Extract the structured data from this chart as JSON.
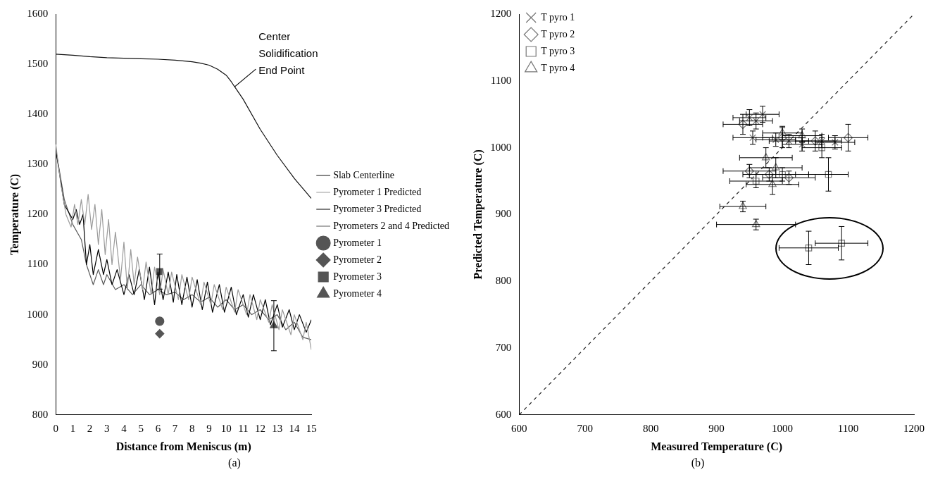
{
  "chart_data": [
    {
      "type": "line",
      "xlabel": "Distance from Meniscus (m)",
      "ylabel": "Temperature (C)",
      "xlim": [
        0,
        15
      ],
      "ylim": [
        800,
        1600
      ],
      "xticks": [
        0,
        1,
        2,
        3,
        4,
        5,
        6,
        7,
        8,
        9,
        10,
        11,
        12,
        13,
        14,
        15
      ],
      "yticks": [
        800,
        900,
        1000,
        1100,
        1200,
        1300,
        1400,
        1500,
        1600
      ],
      "grid": false,
      "legend": "right",
      "annotations": [
        {
          "text": "Center Solidification End Point",
          "x": 10.5,
          "y": 1455
        },
        "(a)"
      ],
      "series": [
        {
          "name": "Slab Centerline",
          "type": "line",
          "color": "#111111",
          "x": [
            0,
            1,
            2,
            3,
            4,
            5,
            6,
            7,
            8,
            8.5,
            9,
            9.5,
            10,
            10.3,
            10.5,
            11,
            12,
            13,
            14,
            15
          ],
          "values": [
            1520,
            1518,
            1515,
            1513,
            1512,
            1511,
            1510,
            1508,
            1505,
            1502,
            1498,
            1490,
            1478,
            1465,
            1455,
            1430,
            1370,
            1318,
            1272,
            1232
          ]
        },
        {
          "name": "Pyrometer 1 Predicted",
          "type": "line",
          "color": "#9a9a9a",
          "x": [
            0,
            0.3,
            0.6,
            0.9,
            1.1,
            1.3,
            1.5,
            1.7,
            1.9,
            2.1,
            2.3,
            2.5,
            2.7,
            2.9,
            3.1,
            3.3,
            3.5,
            3.8,
            4,
            4.2,
            4.4,
            4.6,
            4.8,
            5.1,
            5.3,
            5.6,
            5.8,
            6.1,
            6.3,
            6.6,
            6.8,
            7.2,
            7.4,
            7.8,
            8,
            8.5,
            8.7,
            9.1,
            9.3,
            9.8,
            10,
            10.5,
            10.7,
            11.2,
            11.4,
            11.8,
            12,
            12.5,
            12.7,
            13.1,
            13.3,
            13.8,
            14,
            14.5,
            14.7,
            15
          ],
          "values": [
            1340,
            1260,
            1200,
            1175,
            1220,
            1180,
            1230,
            1180,
            1240,
            1170,
            1220,
            1140,
            1210,
            1120,
            1190,
            1100,
            1165,
            1070,
            1145,
            1050,
            1130,
            1060,
            1115,
            1050,
            1105,
            1040,
            1095,
            1040,
            1090,
            1040,
            1085,
            1030,
            1080,
            1030,
            1075,
            1020,
            1065,
            1020,
            1060,
            1010,
            1055,
            1005,
            1050,
            1000,
            1040,
            990,
            1030,
            985,
            1020,
            970,
            1010,
            960,
            1000,
            950,
            985,
            930
          ]
        },
        {
          "name": "Pyrometer 3 Predicted",
          "type": "line",
          "color": "#000000",
          "x": [
            0,
            0.5,
            1,
            1.2,
            1.4,
            1.6,
            1.8,
            2,
            2.2,
            2.5,
            2.8,
            3,
            3.3,
            3.6,
            4,
            4.3,
            4.6,
            4.9,
            5.2,
            5.5,
            5.8,
            6,
            6.3,
            6.6,
            6.9,
            7.1,
            7.4,
            7.7,
            8,
            8.3,
            8.6,
            8.9,
            9.2,
            9.6,
            9.9,
            10.3,
            10.6,
            11,
            11.3,
            11.6,
            12,
            12.3,
            12.6,
            13,
            13.3,
            13.7,
            14,
            14.3,
            14.7,
            15
          ],
          "values": [
            1330,
            1220,
            1190,
            1210,
            1180,
            1200,
            1100,
            1140,
            1080,
            1130,
            1080,
            1110,
            1060,
            1090,
            1040,
            1080,
            1040,
            1090,
            1030,
            1095,
            1020,
            1085,
            1030,
            1085,
            1025,
            1080,
            1020,
            1075,
            1015,
            1070,
            1010,
            1065,
            1005,
            1060,
            1005,
            1055,
            1000,
            1040,
            995,
            1040,
            990,
            1030,
            980,
            1020,
            975,
            1010,
            970,
            1000,
            965,
            990
          ]
        },
        {
          "name": "Pyrometers 2 and 4 Predicted",
          "type": "line",
          "color": "#5a5a5a",
          "x": [
            0,
            0.5,
            1,
            1.5,
            1.8,
            2,
            2.2,
            2.5,
            2.8,
            3,
            3.5,
            4,
            4.5,
            5,
            5.5,
            6,
            6.5,
            7,
            7.5,
            8,
            8.5,
            9,
            9.5,
            10,
            10.5,
            11,
            11.5,
            12,
            12.5,
            13,
            13.5,
            14,
            14.5,
            15
          ],
          "values": [
            1330,
            1230,
            1180,
            1150,
            1100,
            1080,
            1060,
            1090,
            1060,
            1080,
            1050,
            1060,
            1040,
            1060,
            1040,
            1050,
            1040,
            1045,
            1030,
            1040,
            1025,
            1035,
            1015,
            1030,
            1010,
            1020,
            1000,
            1010,
            990,
            1000,
            970,
            985,
            955,
            950
          ]
        },
        {
          "name": "Pyrometer 1",
          "type": "scatter",
          "marker": "circle",
          "color": "#555555",
          "x": [
            6.1
          ],
          "values": [
            987
          ]
        },
        {
          "name": "Pyrometer 2",
          "type": "scatter",
          "marker": "diamond",
          "color": "#555555",
          "x": [
            6.1
          ],
          "values": [
            962
          ]
        },
        {
          "name": "Pyrometer 3",
          "type": "scatter",
          "marker": "square",
          "color": "#555555",
          "x": [
            6.1
          ],
          "values": [
            1086
          ],
          "errors": [
            35
          ]
        },
        {
          "name": "Pyrometer 4",
          "type": "scatter",
          "marker": "triangle",
          "color": "#555555",
          "x": [
            12.8
          ],
          "values": [
            978
          ],
          "errors": [
            50
          ]
        }
      ]
    },
    {
      "type": "scatter",
      "xlabel": "Measured Temperature (C)",
      "ylabel": "Predicted Temperature (C)",
      "xlim": [
        600,
        1200
      ],
      "ylim": [
        600,
        1200
      ],
      "xticks": [
        600,
        700,
        800,
        900,
        1000,
        1100,
        1200
      ],
      "yticks": [
        600,
        700,
        800,
        900,
        1000,
        1100,
        1200
      ],
      "grid": false,
      "legend": "top left",
      "annotations": [
        "(b)"
      ],
      "series": [
        {
          "name": "T pyro 1",
          "marker": "cross",
          "color": "#777777",
          "x": [
            950,
            960,
            970,
            955,
            990,
            1010,
            1030,
            1060,
            1080
          ],
          "values": [
            1045,
            1040,
            1050,
            1015,
            1012,
            1010,
            1005,
            1010,
            1008
          ],
          "xerrors": [
            25,
            25,
            25,
            30,
            30,
            30,
            30,
            30,
            30
          ],
          "errors": [
            12,
            12,
            12,
            10,
            10,
            10,
            10,
            10,
            10
          ]
        },
        {
          "name": "T pyro 2",
          "marker": "diamond",
          "color": "#777777",
          "x": [
            940,
            1000,
            1050,
            1100,
            950,
            980,
            1010
          ],
          "values": [
            1035,
            1015,
            1010,
            1015,
            965,
            960,
            955
          ],
          "xerrors": [
            30,
            30,
            30,
            30,
            40,
            40,
            40
          ],
          "errors": [
            15,
            15,
            15,
            20,
            10,
            10,
            10
          ]
        },
        {
          "name": "T pyro 3",
          "marker": "square",
          "color": "#777777",
          "x": [
            1070,
            1040,
            1090,
            1060,
            960,
            1000
          ],
          "values": [
            960,
            850,
            857,
            1000,
            950,
            960
          ],
          "xerrors": [
            30,
            45,
            40,
            30,
            40,
            40
          ],
          "errors": [
            25,
            25,
            25,
            15,
            10,
            10
          ]
        },
        {
          "name": "T pyro 4",
          "marker": "triangle",
          "color": "#777777",
          "x": [
            990,
            985,
            975,
            960,
            940,
            1000,
            1030
          ],
          "values": [
            970,
            945,
            985,
            885,
            912,
            1022,
            1018
          ],
          "xerrors": [
            40,
            40,
            40,
            60,
            35,
            30,
            30
          ],
          "errors": [
            15,
            15,
            15,
            8,
            8,
            10,
            10
          ]
        },
        {
          "type": "line",
          "line_style": "dashed",
          "color": "#222222",
          "x": [
            600,
            1200
          ],
          "values": [
            600,
            1200
          ]
        }
      ]
    }
  ]
}
